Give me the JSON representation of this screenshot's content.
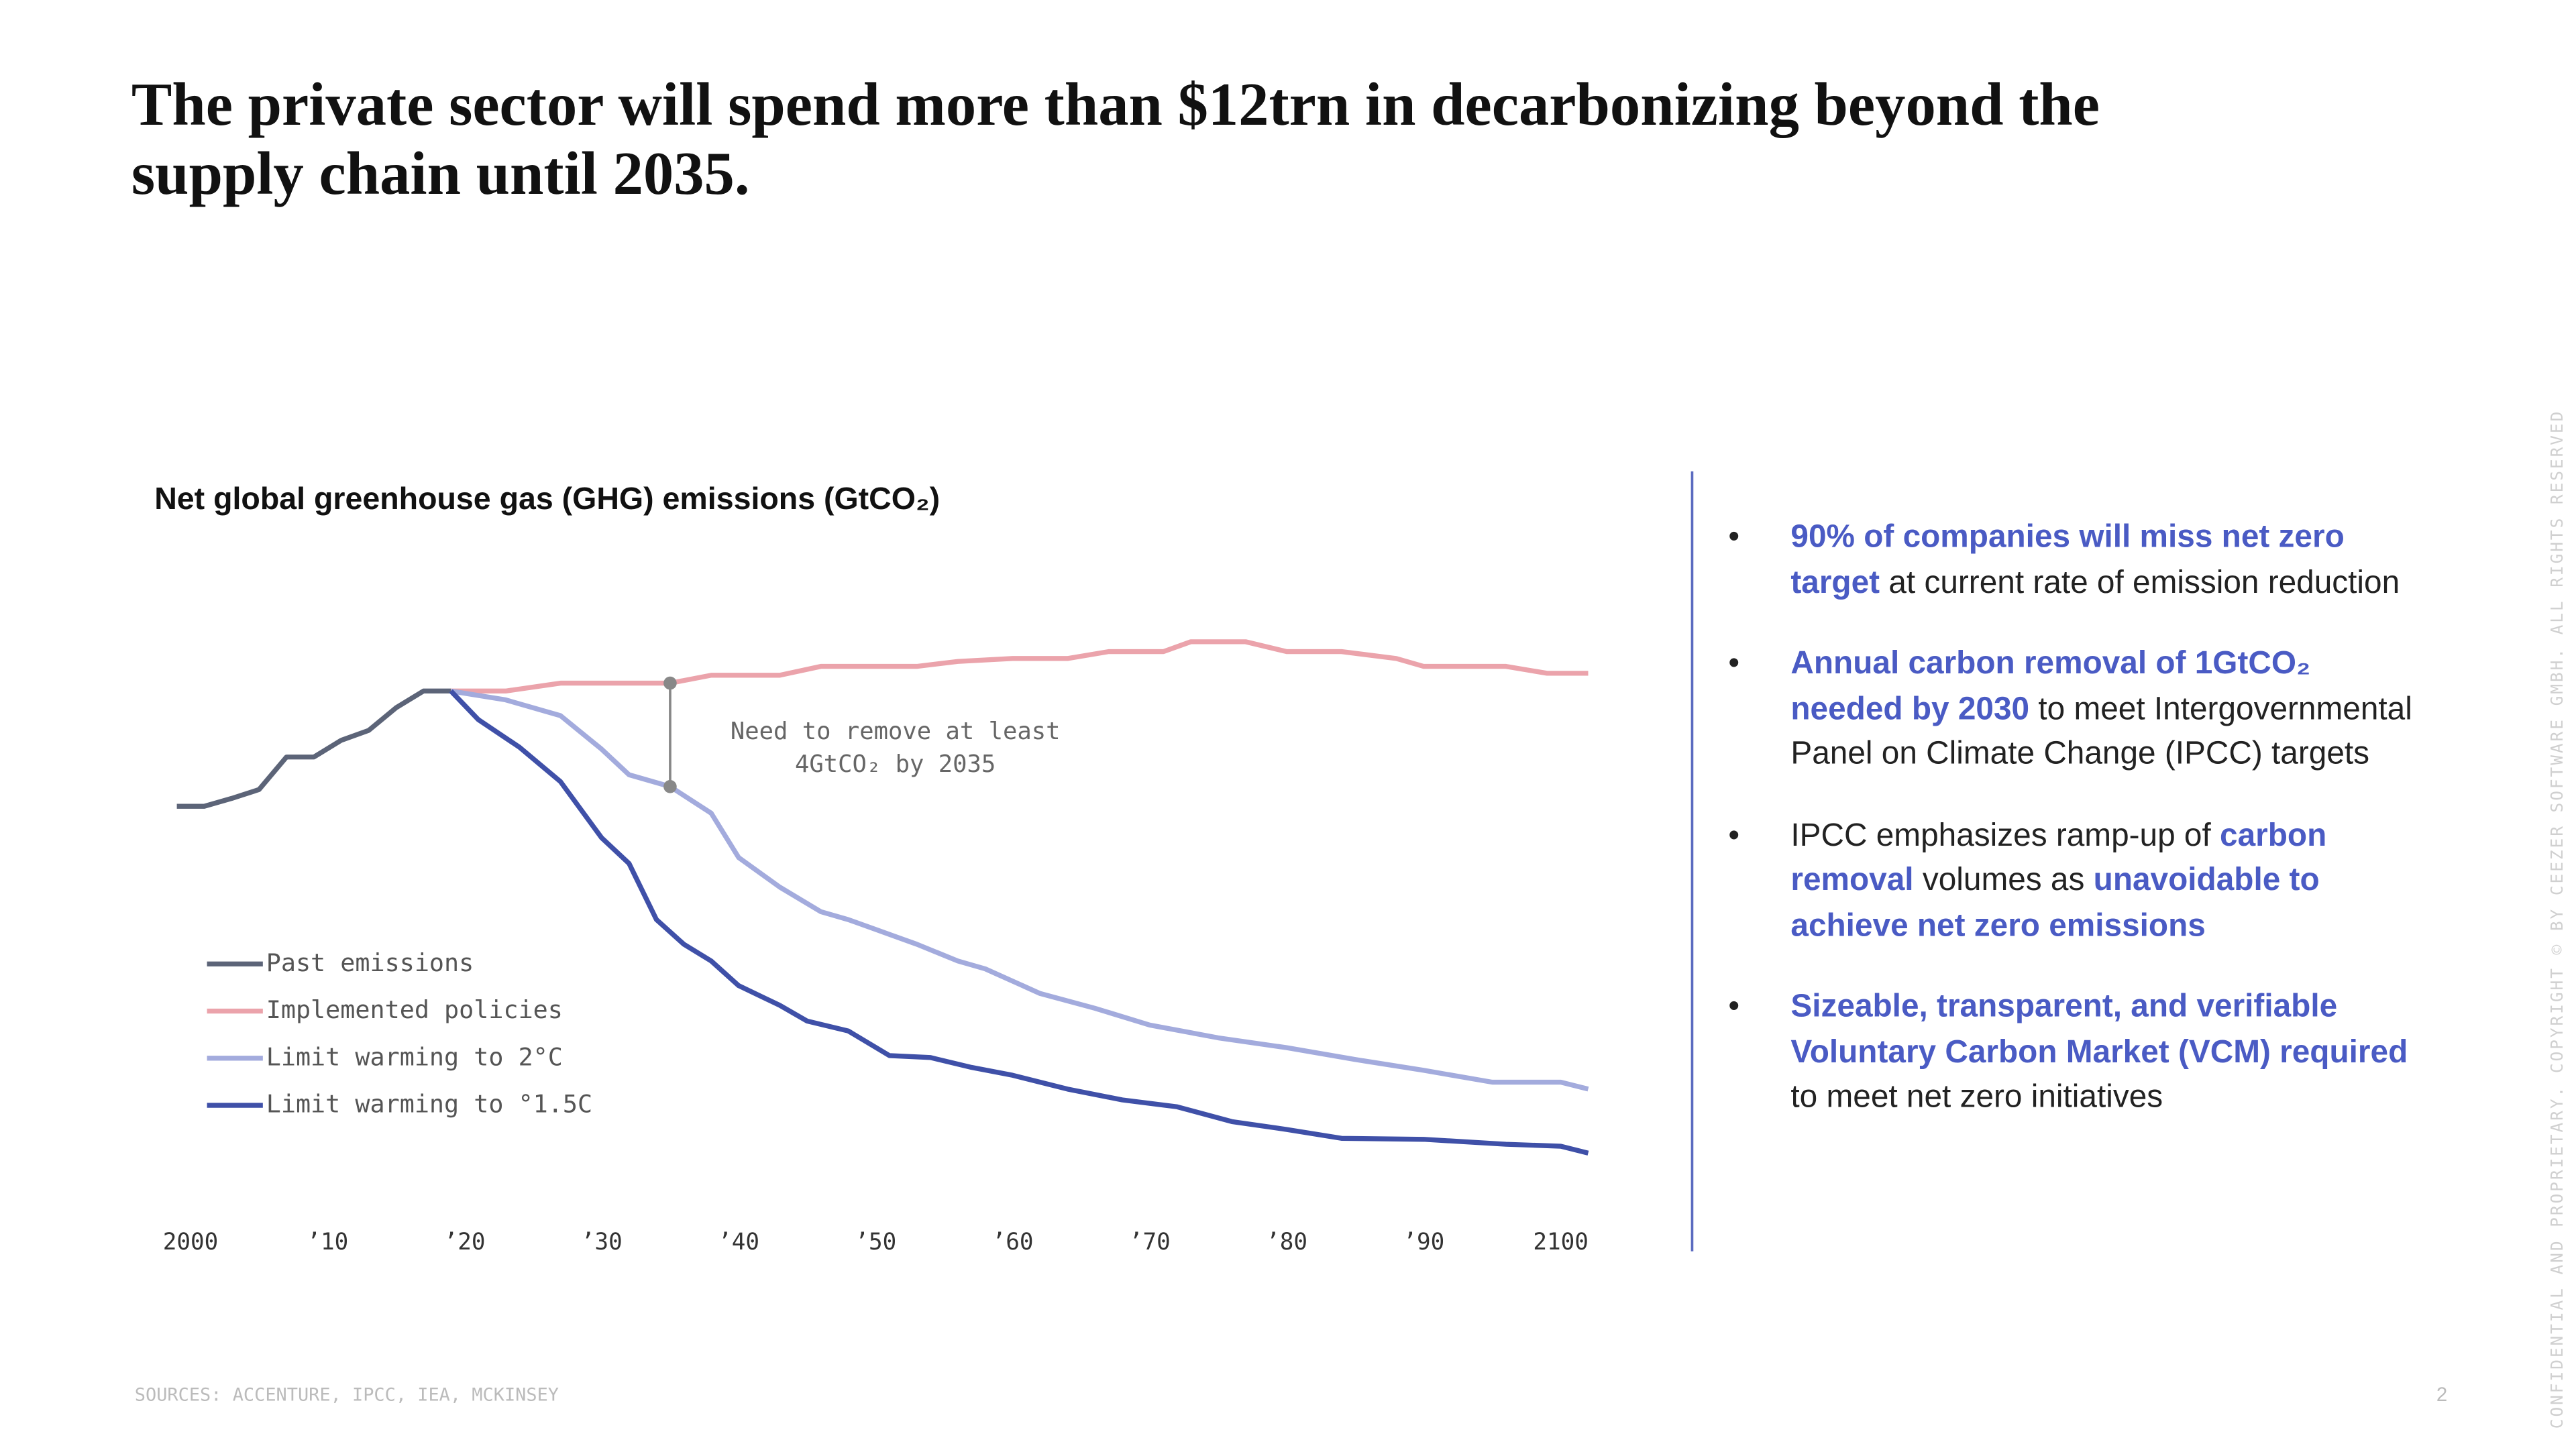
{
  "title_lines": [
    "The private sector will spend more than $12trn in decarbonizing beyond the",
    "supply chain until 2035."
  ],
  "chart_data": {
    "type": "line",
    "title": "Net global greenhouse gas (GHG) emissions (GtCO₂)",
    "xlim": [
      1998,
      2104
    ],
    "xticks": [
      2000,
      {
        "value": 2010,
        "label": "’10"
      },
      {
        "value": 2020,
        "label": "’20"
      },
      {
        "value": 2030,
        "label": "’30"
      },
      {
        "value": 2040,
        "label": "’40"
      },
      {
        "value": 2050,
        "label": "’50"
      },
      {
        "value": 2060,
        "label": "’60"
      },
      {
        "value": 2070,
        "label": "’70"
      },
      {
        "value": 2080,
        "label": "’80"
      },
      {
        "value": 2090,
        "label": "’90"
      },
      2100
    ],
    "ylim": [
      0,
      60
    ],
    "legend": "bottom-left",
    "series": [
      {
        "name": "Past emissions",
        "color": "#5c6478",
        "x": [
          1999,
          2001,
          2003,
          2005,
          2007,
          2009,
          2011,
          2013,
          2015,
          2017,
          2019
        ],
        "values": [
          41.5,
          41.5,
          42.3,
          43.2,
          46.5,
          46.5,
          48.2,
          49.2,
          51.5,
          53.2,
          53.2
        ]
      },
      {
        "name": "Implemented policies",
        "color": "#eba3ab",
        "x": [
          2019,
          2023,
          2027,
          2035,
          2038,
          2043,
          2046,
          2053,
          2056,
          2060,
          2064,
          2067,
          2071,
          2073,
          2077,
          2080,
          2084,
          2088,
          2090,
          2096,
          2099,
          2102
        ],
        "values": [
          53.2,
          53.2,
          54,
          54,
          54.8,
          54.8,
          55.7,
          55.7,
          56.2,
          56.5,
          56.5,
          57.2,
          57.2,
          58.2,
          58.2,
          57.2,
          57.2,
          56.5,
          55.7,
          55.7,
          55,
          55
        ]
      },
      {
        "name": "Limit warming to 2°C",
        "color": "#a3abdd",
        "x": [
          2019,
          2023,
          2027,
          2030,
          2032,
          2035,
          2038,
          2040,
          2043,
          2046,
          2048,
          2050,
          2053,
          2056,
          2058,
          2062,
          2066,
          2070,
          2075,
          2080,
          2085,
          2090,
          2095,
          2100,
          2102
        ],
        "values": [
          53.2,
          52.3,
          50.7,
          47.3,
          44.7,
          43.5,
          40.8,
          36.3,
          33.3,
          30.8,
          30,
          29,
          27.5,
          25.8,
          25,
          22.5,
          21,
          19.3,
          18,
          17,
          15.8,
          14.7,
          13.5,
          13.5,
          12.8
        ]
      },
      {
        "name": "Limit warming to °1.5C",
        "color": "#3f50a8",
        "x": [
          2019,
          2021,
          2024,
          2027,
          2030,
          2032,
          2034,
          2036,
          2038,
          2040,
          2043,
          2045,
          2048,
          2051,
          2054,
          2057,
          2060,
          2064,
          2068,
          2072,
          2076,
          2080,
          2084,
          2090,
          2096,
          2100,
          2102
        ],
        "values": [
          53.2,
          50.3,
          47.5,
          44,
          38.3,
          35.7,
          30,
          27.5,
          25.8,
          23.3,
          21.3,
          19.7,
          18.7,
          16.2,
          16,
          15,
          14.2,
          12.8,
          11.7,
          11,
          9.5,
          8.7,
          7.8,
          7.7,
          7.2,
          7,
          6.3
        ]
      }
    ],
    "annotation": {
      "x": 2035,
      "lines": [
        "Need to remove at least",
        "4GtCO₂ by 2035"
      ]
    }
  },
  "bullets": [
    [
      {
        "text": "90% of companies will miss net zero target",
        "emphasis": true
      },
      {
        "text": " at current rate of emission reduction",
        "emphasis": false
      }
    ],
    [
      {
        "text": "Annual carbon removal of 1GtCO₂ needed by 2030",
        "emphasis": true
      },
      {
        "text": " to meet Intergovernmental Panel on Climate Change (IPCC) targets",
        "emphasis": false
      }
    ],
    [
      {
        "text": "IPCC emphasizes ramp-up of ",
        "emphasis": false
      },
      {
        "text": "carbon removal",
        "emphasis": true
      },
      {
        "text": " volumes as ",
        "emphasis": false
      },
      {
        "text": "unavoidable to achieve net zero emissions",
        "emphasis": true
      }
    ],
    [
      {
        "text": "Sizeable, transparent, and verifiable Voluntary Carbon Market (VCM) required",
        "emphasis": true
      },
      {
        "text": " to meet net zero initiatives",
        "emphasis": false
      }
    ]
  ],
  "sources": "SOURCES: ACCENTURE, IPCC, IEA, MCKINSEY",
  "page_number": "2",
  "side_note": "CONFIDENTIAL AND PROPRIETARY. COPYRIGHT © BY CEEZER SOFTWARE GMBH. ALL RIGHTS RESERVED"
}
